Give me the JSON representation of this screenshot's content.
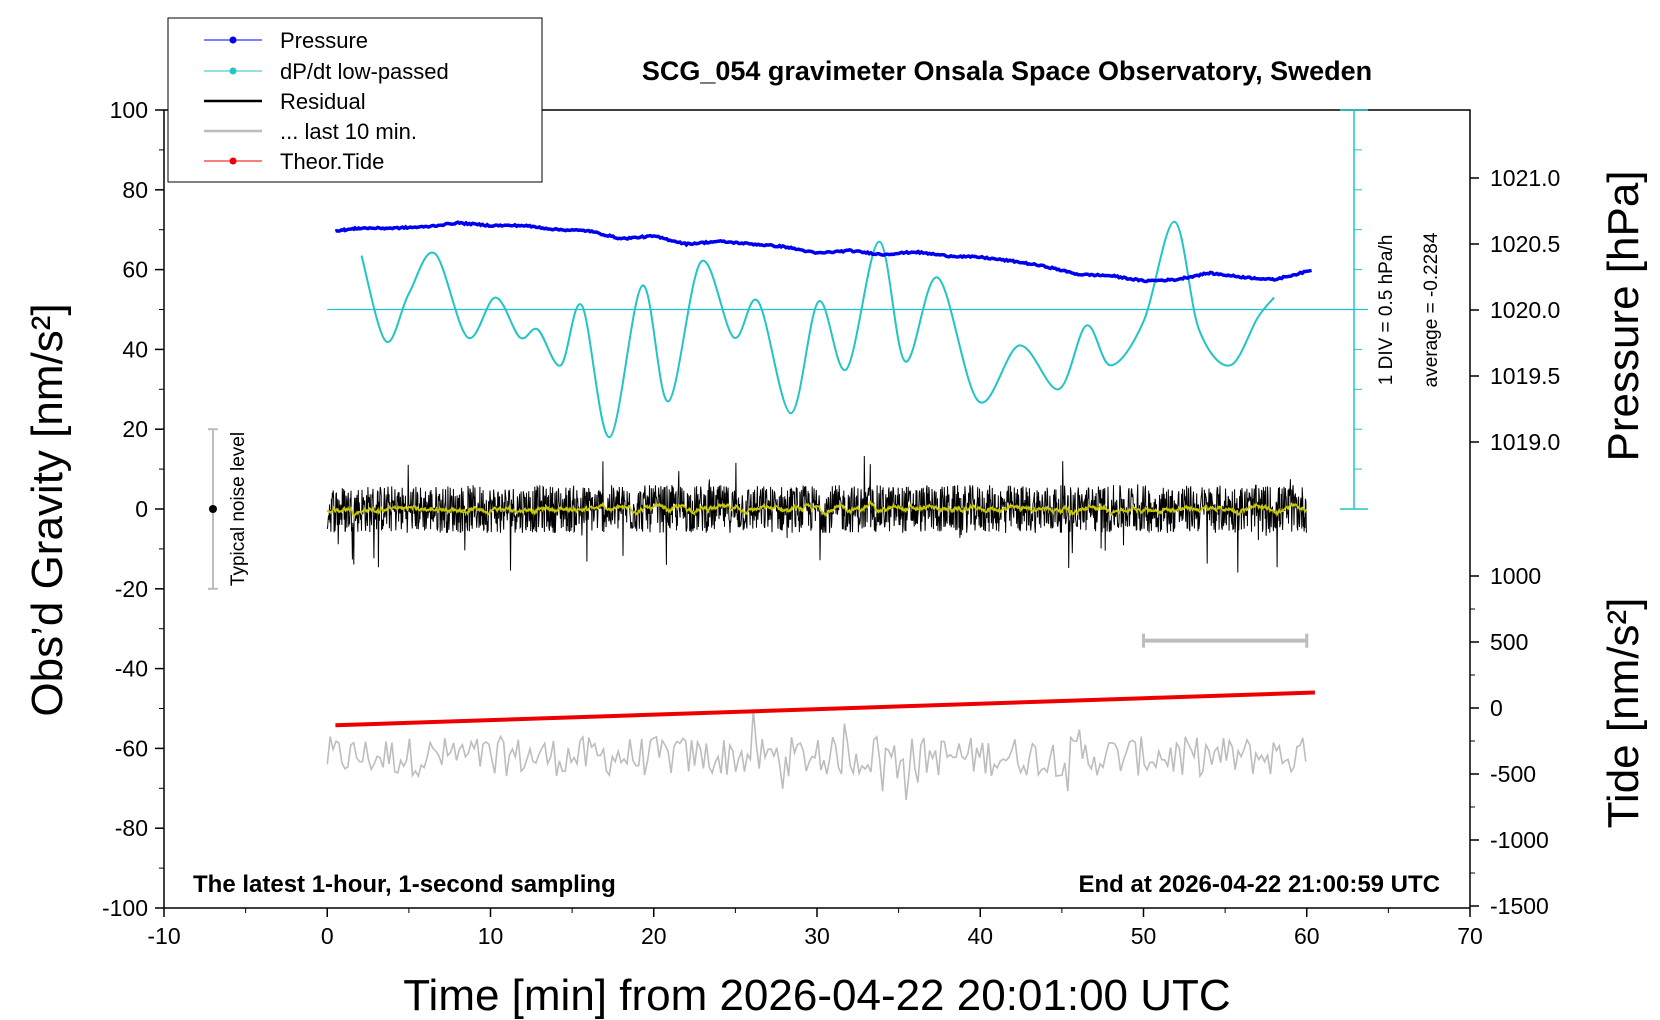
{
  "chart_data": {
    "type": "line",
    "title": "SCG_054 gravimeter Onsala Space Observatory, Sweden",
    "xlabel": "Time [min] from 2026-04-22 20:01:00 UTC",
    "ylabel_left": "Obs’d Gravity [nm/s²]",
    "ylabel_right_pressure": "Pressure [hPa]",
    "ylabel_right_tide": "Tide [nm/s²]",
    "xlim": [
      -10,
      70
    ],
    "ylim_left": [
      -100,
      100
    ],
    "x_ticks": [
      -10,
      0,
      10,
      20,
      30,
      40,
      50,
      60,
      70
    ],
    "x_tick_labels": [
      "-10",
      "0",
      "10",
      "20",
      "30",
      "40",
      "50",
      "60",
      "70"
    ],
    "y_ticks_left": [
      100,
      80,
      60,
      40,
      20,
      0,
      -20,
      -40,
      -60,
      -80,
      -100
    ],
    "y_tick_labels_left": [
      "100",
      "80",
      "60",
      "40",
      "20",
      "0",
      "-20",
      "-40",
      "-60",
      "-80",
      "-100"
    ],
    "pressure_axis": {
      "ticks": [
        1021.0,
        1020.5,
        1020.0,
        1019.5,
        1019.0
      ],
      "tick_labels": [
        "1021.0",
        "1020.5",
        "1020.0",
        "1019.5",
        "1019.0"
      ]
    },
    "tide_axis": {
      "ticks": [
        1000,
        500,
        0,
        -500,
        -1000,
        -1500
      ],
      "tick_labels": [
        "1000",
        "500",
        "0",
        "-500",
        "-1000",
        "-1500"
      ]
    },
    "legend": {
      "placement": "top-left",
      "entries": [
        "Pressure",
        "dP/dt low-passed",
        "Residual",
        "... last 10 min.",
        "Theor.Tide"
      ]
    },
    "annotations": {
      "scale_div": "1 DIV = 0.5 hPa/h",
      "scale_avg": "average = -0.2284",
      "noise_label": "Typical noise level",
      "bottom_left": "The latest 1-hour, 1-second sampling",
      "bottom_right": "End at 2026-04-22 21:00:59 UTC"
    },
    "colors": {
      "pressure": "#0000ee",
      "dpdt": "#22c4c4",
      "residual": "#000000",
      "last10": "#bdbdbd",
      "tide": "#ee0000",
      "smoothed": "#c8c800"
    },
    "noise_level": {
      "x": -7,
      "y": 0,
      "range": [
        -20,
        20
      ]
    },
    "last10_marker": {
      "x_range": [
        50,
        60
      ],
      "y": -33
    },
    "series": [
      {
        "name": "Pressure",
        "unit": "hPa",
        "x": [
          0.5,
          2,
          4,
          6,
          8,
          10,
          12,
          14,
          16,
          18,
          20,
          22,
          24,
          26,
          28,
          30,
          32,
          34,
          36,
          38,
          40,
          42,
          44,
          46,
          48,
          50,
          52,
          54,
          56,
          58,
          60.3
        ],
        "values": [
          1020.6,
          1020.62,
          1020.62,
          1020.63,
          1020.66,
          1020.64,
          1020.64,
          1020.61,
          1020.6,
          1020.54,
          1020.56,
          1020.5,
          1020.52,
          1020.5,
          1020.48,
          1020.43,
          1020.45,
          1020.42,
          1020.44,
          1020.41,
          1020.4,
          1020.37,
          1020.33,
          1020.27,
          1020.26,
          1020.22,
          1020.23,
          1020.28,
          1020.25,
          1020.23,
          1020.3
        ]
      },
      {
        "name": "dP/dt low-passed",
        "x": [
          2.1,
          3.6,
          5.0,
          6.6,
          8.6,
          10.3,
          11.8,
          12.9,
          14.3,
          15.6,
          17.3,
          19.3,
          20.9,
          22.9,
          24.9,
          26.4,
          28.4,
          30.1,
          31.8,
          33.8,
          35.4,
          37.4,
          39.9,
          42.4,
          44.8,
          46.5,
          48.0,
          50.0,
          51.9,
          53.4,
          55.3,
          57.0,
          58.0
        ],
        "values": [
          63.5,
          42,
          54,
          64,
          43,
          53,
          43,
          45,
          36,
          51,
          18,
          56,
          27,
          62,
          43,
          52,
          24,
          52,
          35,
          67,
          37,
          58,
          27,
          41,
          30,
          46,
          36,
          47,
          72,
          45,
          36,
          48,
          53
        ]
      },
      {
        "name": "Residual",
        "x_range": [
          0,
          60
        ],
        "center": 0,
        "typical_amplitude": 6,
        "max_amplitude": 16
      },
      {
        "name": "... last 10 min.",
        "x_range": [
          0,
          60
        ],
        "center": -62,
        "min": -75,
        "max": -46
      },
      {
        "name": "Theor.Tide",
        "x": [
          0.5,
          60.5
        ],
        "values": [
          -54.2,
          -46.0
        ]
      }
    ]
  }
}
